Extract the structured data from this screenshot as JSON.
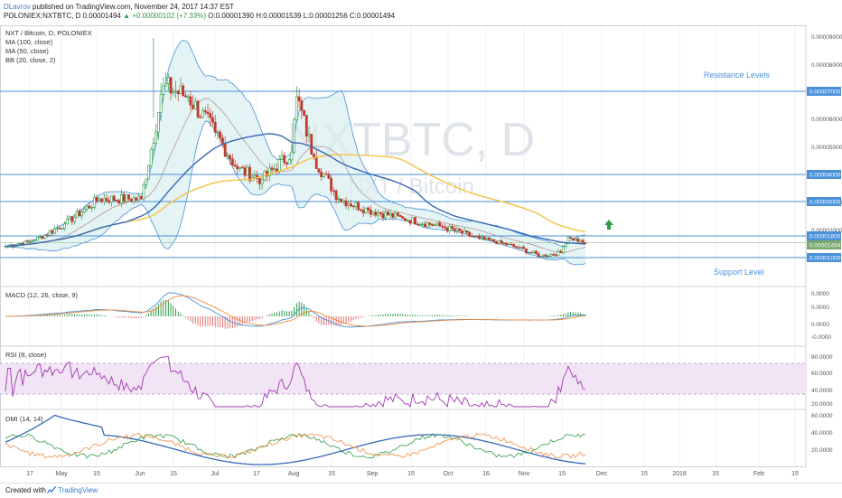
{
  "header": {
    "author": "DLavrov",
    "published": " published on TradingView.com, November 24, 2017 14:37 EST",
    "symbol_line_prefix": "POLONIEX:NXTBTC, D ",
    "last": "0.00001494",
    "change": "▲ +0.00000102 (+7.33%)",
    "ohlc": " O:0.00001390 H:0.00001539 L:0.00001256 C:0.00001494"
  },
  "main_legend": [
    "NXT / Bitcoin, D, POLONIEX",
    "MA (100, close)",
    "MA (50, close)",
    "BB (20, close, 2)"
  ],
  "watermark": {
    "big": "NXTBTC, D",
    "small": "NXT / Bitcoin"
  },
  "annotations": {
    "resistance": "Resistance Levels",
    "support": "Support Level"
  },
  "price_axis_labels": [
    "0.00009000",
    "0.00008000",
    "0.00006000",
    "0.00005000",
    "0.00003000",
    "0.00002000"
  ],
  "level_labels": [
    "0.00007000",
    "0.00004000",
    "0.00003000",
    "0.00001800",
    "0.00001494",
    "0.00001000"
  ],
  "panes": {
    "macd": {
      "title": "MACD (12, 26, close, 9)",
      "ticks": [
        "0.0000",
        "0.0000",
        "0.0000",
        "-0.0000"
      ]
    },
    "rsi": {
      "title": "RSI (8, close)",
      "ticks": [
        "80.0000",
        "60.0000",
        "40.0000",
        "20.0000"
      ]
    },
    "dmi": {
      "title": "DMI (14, 14)",
      "ticks": [
        "60.0000",
        "40.0000",
        "20.0000"
      ]
    }
  },
  "time_axis": [
    "17",
    "May",
    "15",
    "Jun",
    "15",
    "Jul",
    "17",
    "Aug",
    "15",
    "Sep",
    "15",
    "Oct",
    "16",
    "Nov",
    "15",
    "Dec",
    "15",
    "2018",
    "15",
    "Feb",
    "15"
  ],
  "footer": {
    "created": "Created with",
    "brand": "TradingView"
  },
  "colors": {
    "bull": "#2e9b47",
    "bear": "#c0392b",
    "ma100": "#f5c242",
    "ma50": "#3568b8",
    "bb": "#4a90d9",
    "level": "#4a90d9",
    "macd": "#4a90d9",
    "signal": "#f08a3c",
    "rsi": "#a03ab0",
    "dmi_adx": "#3568b8",
    "dmi_plus": "#2e9b47",
    "dmi_minus": "#f08a3c"
  },
  "chart_data": {
    "type": "line",
    "title": "NXT / Bitcoin, D, POLONIEX",
    "horizontal_levels": [
      7e-05,
      4e-05,
      3e-05,
      1.8e-05,
      1e-05,
      1.494e-05
    ],
    "close_series": [
      {
        "date": "Apr 7",
        "close": 1.35e-05
      },
      {
        "date": "Apr 17",
        "close": 1.55e-05
      },
      {
        "date": "May 1",
        "close": 2.2e-05
      },
      {
        "date": "May 15",
        "close": 3.1e-05
      },
      {
        "date": "Jun 1",
        "close": 3.1e-05
      },
      {
        "date": "Jun 10",
        "close": 7.2e-05
      },
      {
        "date": "Jun 20",
        "close": 6.8e-05
      },
      {
        "date": "Jul 1",
        "close": 5.5e-05
      },
      {
        "date": "Jul 10",
        "close": 4.2e-05
      },
      {
        "date": "Jul 20",
        "close": 3.8e-05
      },
      {
        "date": "Aug 1",
        "close": 4.8e-05
      },
      {
        "date": "Aug 3",
        "close": 6.8e-05
      },
      {
        "date": "Aug 10",
        "close": 4.6e-05
      },
      {
        "date": "Aug 20",
        "close": 3.1e-05
      },
      {
        "date": "Sep 1",
        "close": 2.7e-05
      },
      {
        "date": "Sep 15",
        "close": 2.4e-05
      },
      {
        "date": "Oct 1",
        "close": 2.1e-05
      },
      {
        "date": "Oct 16",
        "close": 1.7e-05
      },
      {
        "date": "Nov 1",
        "close": 1.3e-05
      },
      {
        "date": "Nov 10",
        "close": 1.05e-05
      },
      {
        "date": "Nov 18",
        "close": 1.15e-05
      },
      {
        "date": "Nov 21",
        "close": 1.75e-05
      },
      {
        "date": "Nov 24",
        "close": 1.494e-05
      }
    ]
  }
}
